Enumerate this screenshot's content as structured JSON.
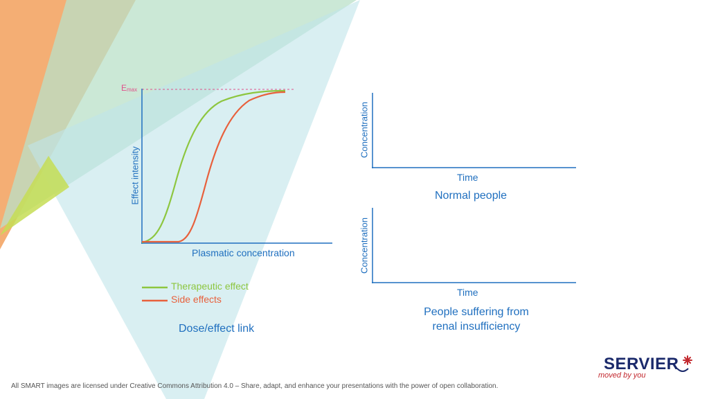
{
  "left_chart": {
    "emax_label": "E",
    "emax_sub": "max",
    "y_axis_label": "Effect intensity",
    "x_axis_label": "Plasmatic concentration",
    "caption": "Dose/effect link",
    "legend": [
      {
        "label": "Therapeutic effect",
        "color": "#8dc63f"
      },
      {
        "label": "Side effects",
        "color": "#e8603c"
      }
    ]
  },
  "top_right_chart": {
    "y_axis_label": "Concentration",
    "x_axis_label": "Time",
    "caption": "Normal people"
  },
  "bottom_right_chart": {
    "y_axis_label": "Concentration",
    "x_axis_label": "Time",
    "caption_line1": "People suffering from",
    "caption_line2": "renal insufficiency"
  },
  "logo": {
    "name": "SERVIER",
    "tagline": "moved by you"
  },
  "footer": "All SMART images are licensed under Creative Commons Attribution 4.0 – Share, adapt, and enhance your presentations with the power of open collaboration.",
  "colors": {
    "axis": "#1f6fbf",
    "therapeutic": "#8dc63f",
    "side": "#e8603c",
    "emax_line": "#e0508a"
  }
}
